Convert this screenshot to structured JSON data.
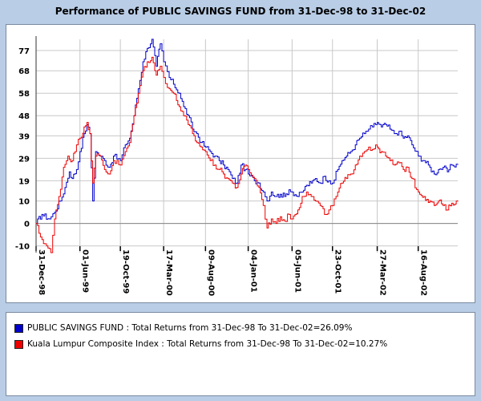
{
  "chart_data": {
    "type": "line",
    "title": "Performance of PUBLIC SAVINGS FUND from 31-Dec-98 to 31-Dec-02",
    "xlabel": "",
    "ylabel": "",
    "ylim": [
      -13,
      82
    ],
    "y_ticks": [
      77,
      68,
      58,
      48,
      39,
      29,
      19,
      10,
      0,
      -10
    ],
    "x_tick_labels": [
      "31-Dec-98",
      "01-Jun-99",
      "19-Oct-99",
      "17-Mar-00",
      "09-Aug-00",
      "04-Jan-01",
      "05-Jun-01",
      "23-Oct-01",
      "27-Mar-02",
      "16-Aug-02"
    ],
    "x_tick_dates": [
      "1998-12-31",
      "1999-06-01",
      "1999-10-19",
      "2000-03-17",
      "2000-08-09",
      "2001-01-04",
      "2001-06-05",
      "2001-10-23",
      "2002-03-27",
      "2002-08-16"
    ],
    "grid": true,
    "legend_position": "bottom",
    "series": [
      {
        "name": "PUBLIC SAVINGS FUND : Total Returns from 31-Dec-98 To 31-Dec-02=26.09%",
        "color": "#0000cc",
        "points": [
          [
            "1998-12-31",
            0
          ],
          [
            "1999-01-20",
            4
          ],
          [
            "1999-02-15",
            2
          ],
          [
            "1999-03-05",
            5
          ],
          [
            "1999-03-25",
            10
          ],
          [
            "1999-04-10",
            16
          ],
          [
            "1999-04-25",
            23
          ],
          [
            "1999-05-05",
            20
          ],
          [
            "1999-05-20",
            24
          ],
          [
            "1999-06-01",
            32
          ],
          [
            "1999-06-15",
            40
          ],
          [
            "1999-06-25",
            44
          ],
          [
            "1999-07-05",
            40
          ],
          [
            "1999-07-15",
            10
          ],
          [
            "1999-07-25",
            32
          ],
          [
            "1999-08-10",
            30
          ],
          [
            "1999-08-25",
            28
          ],
          [
            "1999-09-10",
            25
          ],
          [
            "1999-09-25",
            30
          ],
          [
            "1999-10-19",
            28
          ],
          [
            "1999-11-05",
            35
          ],
          [
            "1999-11-20",
            38
          ],
          [
            "1999-12-05",
            48
          ],
          [
            "1999-12-20",
            60
          ],
          [
            "2000-01-05",
            72
          ],
          [
            "2000-01-20",
            78
          ],
          [
            "2000-02-05",
            82
          ],
          [
            "2000-02-20",
            70
          ],
          [
            "2000-03-05",
            80
          ],
          [
            "2000-03-17",
            72
          ],
          [
            "2000-04-05",
            65
          ],
          [
            "2000-04-20",
            62
          ],
          [
            "2000-05-10",
            58
          ],
          [
            "2000-05-25",
            52
          ],
          [
            "2000-06-10",
            48
          ],
          [
            "2000-06-25",
            42
          ],
          [
            "2000-07-10",
            40
          ],
          [
            "2000-07-25",
            36
          ],
          [
            "2000-08-09",
            34
          ],
          [
            "2000-08-25",
            32
          ],
          [
            "2000-09-10",
            30
          ],
          [
            "2000-09-25",
            28
          ],
          [
            "2000-10-10",
            26
          ],
          [
            "2000-10-25",
            24
          ],
          [
            "2000-11-10",
            20
          ],
          [
            "2000-11-25",
            18
          ],
          [
            "2000-12-10",
            26
          ],
          [
            "2000-12-25",
            24
          ],
          [
            "2001-01-04",
            22
          ],
          [
            "2001-01-25",
            19
          ],
          [
            "2001-02-10",
            18
          ],
          [
            "2001-02-25",
            14
          ],
          [
            "2001-03-10",
            10
          ],
          [
            "2001-03-25",
            14
          ],
          [
            "2001-04-10",
            12
          ],
          [
            "2001-04-25",
            13
          ],
          [
            "2001-05-10",
            12
          ],
          [
            "2001-05-25",
            15
          ],
          [
            "2001-06-05",
            14
          ],
          [
            "2001-06-25",
            12
          ],
          [
            "2001-07-10",
            14
          ],
          [
            "2001-07-25",
            17
          ],
          [
            "2001-08-10",
            18
          ],
          [
            "2001-08-25",
            20
          ],
          [
            "2001-09-10",
            18
          ],
          [
            "2001-09-25",
            21
          ],
          [
            "2001-10-10",
            19
          ],
          [
            "2001-10-23",
            18
          ],
          [
            "2001-11-10",
            24
          ],
          [
            "2001-11-25",
            28
          ],
          [
            "2001-12-10",
            30
          ],
          [
            "2001-12-25",
            32
          ],
          [
            "2002-01-10",
            35
          ],
          [
            "2002-01-25",
            38
          ],
          [
            "2002-02-10",
            40
          ],
          [
            "2002-02-25",
            42
          ],
          [
            "2002-03-10",
            43
          ],
          [
            "2002-03-27",
            45
          ],
          [
            "2002-04-10",
            43
          ],
          [
            "2002-04-25",
            44
          ],
          [
            "2002-05-10",
            42
          ],
          [
            "2002-05-25",
            40
          ],
          [
            "2002-06-10",
            41
          ],
          [
            "2002-06-25",
            38
          ],
          [
            "2002-07-10",
            39
          ],
          [
            "2002-07-25",
            35
          ],
          [
            "2002-08-16",
            30
          ],
          [
            "2002-09-05",
            28
          ],
          [
            "2002-09-25",
            25
          ],
          [
            "2002-10-10",
            22
          ],
          [
            "2002-10-25",
            24
          ],
          [
            "2002-11-10",
            25
          ],
          [
            "2002-11-25",
            23
          ],
          [
            "2002-12-10",
            26
          ],
          [
            "2002-12-31",
            26.09
          ]
        ]
      },
      {
        "name": "Kuala Lumpur Composite Index : Total Returns from 31-Dec-98 To 31-Dec-02=10.27%",
        "color": "#ee0000",
        "points": [
          [
            "1998-12-31",
            0
          ],
          [
            "1999-01-15",
            -6
          ],
          [
            "1999-02-05",
            -10
          ],
          [
            "1999-02-20",
            -13
          ],
          [
            "1999-03-05",
            2
          ],
          [
            "1999-03-20",
            12
          ],
          [
            "1999-04-05",
            25
          ],
          [
            "1999-04-20",
            30
          ],
          [
            "1999-05-05",
            28
          ],
          [
            "1999-05-20",
            35
          ],
          [
            "1999-06-01",
            38
          ],
          [
            "1999-06-15",
            43
          ],
          [
            "1999-06-25",
            45
          ],
          [
            "1999-07-05",
            40
          ],
          [
            "1999-07-15",
            18
          ],
          [
            "1999-07-25",
            30
          ],
          [
            "1999-08-10",
            30
          ],
          [
            "1999-08-25",
            24
          ],
          [
            "1999-09-10",
            22
          ],
          [
            "1999-09-25",
            28
          ],
          [
            "1999-10-19",
            26
          ],
          [
            "1999-11-05",
            32
          ],
          [
            "1999-11-20",
            36
          ],
          [
            "1999-12-05",
            48
          ],
          [
            "1999-12-20",
            58
          ],
          [
            "2000-01-05",
            68
          ],
          [
            "2000-01-20",
            72
          ],
          [
            "2000-02-05",
            74
          ],
          [
            "2000-02-20",
            66
          ],
          [
            "2000-03-05",
            70
          ],
          [
            "2000-03-17",
            65
          ],
          [
            "2000-04-05",
            60
          ],
          [
            "2000-04-20",
            58
          ],
          [
            "2000-05-10",
            52
          ],
          [
            "2000-05-25",
            48
          ],
          [
            "2000-06-10",
            44
          ],
          [
            "2000-06-25",
            40
          ],
          [
            "2000-07-10",
            36
          ],
          [
            "2000-07-25",
            34
          ],
          [
            "2000-08-09",
            32
          ],
          [
            "2000-08-25",
            28
          ],
          [
            "2000-09-10",
            26
          ],
          [
            "2000-09-25",
            24
          ],
          [
            "2000-10-10",
            22
          ],
          [
            "2000-10-25",
            20
          ],
          [
            "2000-11-10",
            18
          ],
          [
            "2000-11-25",
            16
          ],
          [
            "2000-12-10",
            22
          ],
          [
            "2000-12-25",
            26
          ],
          [
            "2001-01-04",
            24
          ],
          [
            "2001-01-25",
            20
          ],
          [
            "2001-02-10",
            16
          ],
          [
            "2001-02-25",
            8
          ],
          [
            "2001-03-10",
            -2
          ],
          [
            "2001-03-25",
            2
          ],
          [
            "2001-04-10",
            0
          ],
          [
            "2001-04-25",
            3
          ],
          [
            "2001-05-10",
            1
          ],
          [
            "2001-05-25",
            4
          ],
          [
            "2001-06-05",
            2
          ],
          [
            "2001-06-25",
            6
          ],
          [
            "2001-07-10",
            12
          ],
          [
            "2001-07-25",
            14
          ],
          [
            "2001-08-10",
            12
          ],
          [
            "2001-08-25",
            10
          ],
          [
            "2001-09-10",
            8
          ],
          [
            "2001-09-25",
            4
          ],
          [
            "2001-10-10",
            6
          ],
          [
            "2001-10-23",
            8
          ],
          [
            "2001-11-10",
            14
          ],
          [
            "2001-11-25",
            18
          ],
          [
            "2001-12-10",
            20
          ],
          [
            "2001-12-25",
            22
          ],
          [
            "2002-01-10",
            26
          ],
          [
            "2002-01-25",
            30
          ],
          [
            "2002-02-10",
            32
          ],
          [
            "2002-02-25",
            34
          ],
          [
            "2002-03-10",
            33
          ],
          [
            "2002-03-27",
            34
          ],
          [
            "2002-04-10",
            32
          ],
          [
            "2002-04-25",
            30
          ],
          [
            "2002-05-10",
            28
          ],
          [
            "2002-05-25",
            26
          ],
          [
            "2002-06-10",
            27
          ],
          [
            "2002-06-25",
            24
          ],
          [
            "2002-07-10",
            25
          ],
          [
            "2002-07-25",
            20
          ],
          [
            "2002-08-16",
            14
          ],
          [
            "2002-09-05",
            12
          ],
          [
            "2002-09-25",
            10
          ],
          [
            "2002-10-10",
            8
          ],
          [
            "2002-10-25",
            10
          ],
          [
            "2002-11-10",
            8
          ],
          [
            "2002-11-25",
            6
          ],
          [
            "2002-12-10",
            9
          ],
          [
            "2002-12-31",
            10.27
          ]
        ]
      }
    ]
  }
}
